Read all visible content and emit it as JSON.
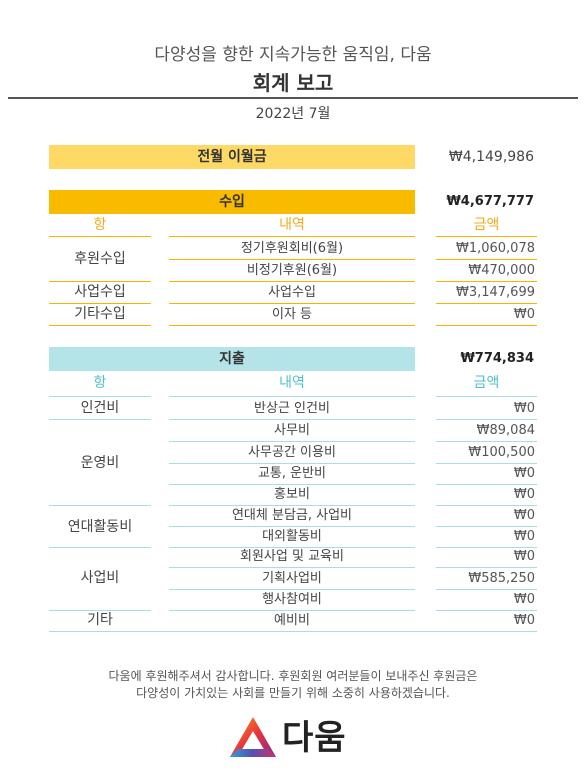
{
  "header": {
    "subtitle": "다양성을 향한 지속가능한 움직임, 다움",
    "title": "회계 보고",
    "date": "2022년 7월"
  },
  "carryover": {
    "label": "전월 이월금",
    "value": "₩4,149,986"
  },
  "income": {
    "label": "수입",
    "total": "₩4,677,777",
    "col_item": "항",
    "col_detail": "내역",
    "col_amount": "금액",
    "rows": [
      {
        "item": "후원수입",
        "detail": "정기후원회비(6월)",
        "amount": "₩1,060,078"
      },
      {
        "item": "",
        "detail": "비정기후원(6월)",
        "amount": "₩470,000"
      },
      {
        "item": "사업수입",
        "detail": "사업수입",
        "amount": "₩3,147,699"
      },
      {
        "item": "기타수입",
        "detail": "이자 등",
        "amount": "₩0"
      }
    ]
  },
  "expense": {
    "label": "지출",
    "total": "₩774,834",
    "col_item": "항",
    "col_detail": "내역",
    "col_amount": "금액",
    "groups": [
      {
        "item": "인건비",
        "rows": [
          {
            "detail": "반상근 인건비",
            "amount": "₩0"
          }
        ]
      },
      {
        "item": "운영비",
        "rows": [
          {
            "detail": "사무비",
            "amount": "₩89,084"
          },
          {
            "detail": "사무공간 이용비",
            "amount": "₩100,500"
          },
          {
            "detail": "교통, 운반비",
            "amount": "₩0"
          },
          {
            "detail": "홍보비",
            "amount": "₩0"
          }
        ]
      },
      {
        "item": "연대활동비",
        "rows": [
          {
            "detail": "연대체 분담금, 사업비",
            "amount": "₩0"
          },
          {
            "detail": "대외활동비",
            "amount": "₩0"
          }
        ]
      },
      {
        "item": "사업비",
        "rows": [
          {
            "detail": "회원사업 및 교육비",
            "amount": "₩0"
          },
          {
            "detail": "기획사업비",
            "amount": "₩585,250"
          },
          {
            "detail": "행사참여비",
            "amount": "₩0"
          }
        ]
      },
      {
        "item": "기타",
        "rows": [
          {
            "detail": "예비비",
            "amount": "₩0"
          }
        ]
      }
    ]
  },
  "footer": {
    "line1": "다움에 후원해주셔서 감사합니다. 후원회원 여러분들이 보내주신 후원금은",
    "line2": "다양성이 가치있는 사회를 만들기 위해 소중히 사용하겠습니다.",
    "logo_text": "다움"
  },
  "colors": {
    "carryover_bar": "#fed966",
    "income_bar": "#f9bb00",
    "expense_bar": "#b5e4e8",
    "income_accent": "#f3a91b",
    "expense_accent": "#4fc0c9"
  }
}
